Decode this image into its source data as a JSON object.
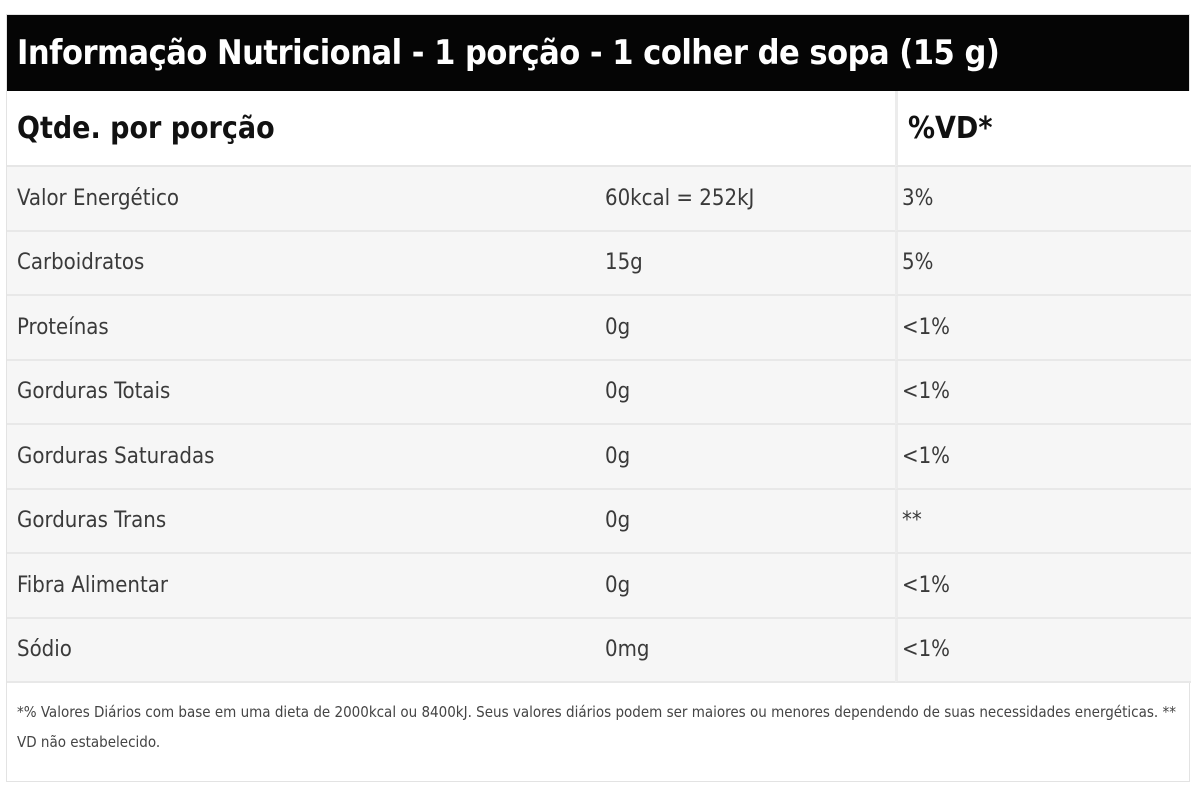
{
  "title": "Informação Nutricional - 1 porção - 1 colher de sopa (15 g)",
  "header": {
    "col1": "Qtde. por porção",
    "col3": "%VD*"
  },
  "rows": [
    {
      "name": "Valor Energético",
      "amount": "60kcal = 252kJ",
      "vd": "3%"
    },
    {
      "name": "Carboidratos",
      "amount": "15g",
      "vd": "5%"
    },
    {
      "name": "Proteínas",
      "amount": "0g",
      "vd": "<1%"
    },
    {
      "name": "Gorduras Totais",
      "amount": "0g",
      "vd": "<1%"
    },
    {
      "name": "Gorduras Saturadas",
      "amount": "0g",
      "vd": "<1%"
    },
    {
      "name": "Gorduras Trans",
      "amount": "0g",
      "vd": "**"
    },
    {
      "name": "Fibra Alimentar",
      "amount": "0g",
      "vd": "<1%"
    },
    {
      "name": "Sódio",
      "amount": "0mg",
      "vd": "<1%"
    }
  ],
  "footnote": "*% Valores Diários com base em uma dieta de 2000kcal ou 8400kJ. Seus valores diários podem ser maiores ou menores dependendo de suas necessidades energéticas. ** VD não estabelecido."
}
